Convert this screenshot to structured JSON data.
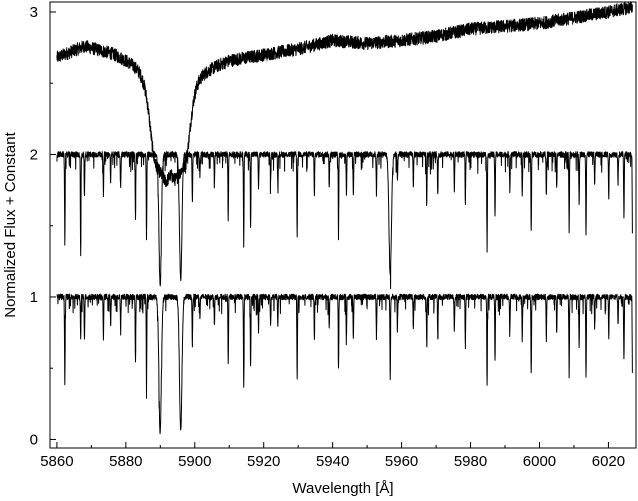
{
  "chart_data": {
    "type": "line",
    "title": "",
    "xlabel": "Wavelength [Å]",
    "ylabel": "Normalized Flux + Constant",
    "xlim": [
      5858,
      6028
    ],
    "ylim": [
      -0.06,
      3.07
    ],
    "xticks": [
      5860,
      5880,
      5900,
      5920,
      5940,
      5960,
      5980,
      6000,
      6020
    ],
    "yticks": [
      0,
      1,
      2,
      3
    ],
    "grid": false,
    "legend": "none",
    "series": [
      {
        "kind": "smooth",
        "baseline": 2.65,
        "trend": [
          [
            5860,
            2.68
          ],
          [
            5868,
            2.76
          ],
          [
            5876,
            2.71
          ],
          [
            5884,
            2.62
          ],
          [
            5892,
            2.5
          ],
          [
            5900,
            2.56
          ],
          [
            5910,
            2.66
          ],
          [
            5920,
            2.7
          ],
          [
            5930,
            2.74
          ],
          [
            5940,
            2.8
          ],
          [
            5950,
            2.78
          ],
          [
            5960,
            2.8
          ],
          [
            5970,
            2.83
          ],
          [
            5980,
            2.88
          ],
          [
            5990,
            2.9
          ],
          [
            6000,
            2.92
          ],
          [
            6010,
            2.96
          ],
          [
            6020,
            3.0
          ],
          [
            6026,
            3.03
          ]
        ],
        "noise": 0.045,
        "lines": [
          [
            5889.95,
            0.62,
            3.2
          ],
          [
            5895.92,
            0.6,
            3.0
          ]
        ]
      },
      {
        "kind": "telluric",
        "baseline": 2.0,
        "lines": [
          [
            5862.3,
            0.62
          ],
          [
            5866.9,
            0.72
          ],
          [
            5868.0,
            0.3
          ],
          [
            5873.5,
            0.3
          ],
          [
            5875.6,
            0.2
          ],
          [
            5878.5,
            0.25
          ],
          [
            5882.8,
            0.45
          ],
          [
            5886.0,
            0.58
          ],
          [
            5889.95,
            0.92
          ],
          [
            5895.92,
            0.88
          ],
          [
            5899.3,
            0.35
          ],
          [
            5901.5,
            0.15
          ],
          [
            5905.7,
            0.2
          ],
          [
            5909.7,
            0.45
          ],
          [
            5914.2,
            0.65
          ],
          [
            5916.2,
            0.5
          ],
          [
            5918.5,
            0.25
          ],
          [
            5922.0,
            0.2
          ],
          [
            5924.1,
            0.22
          ],
          [
            5929.7,
            0.58
          ],
          [
            5934.7,
            0.3
          ],
          [
            5939.0,
            0.22
          ],
          [
            5941.7,
            0.5
          ],
          [
            5944.0,
            0.28
          ],
          [
            5946.0,
            0.3
          ],
          [
            5952.7,
            0.28
          ],
          [
            5956.7,
            0.85
          ],
          [
            5958.8,
            0.2
          ],
          [
            5963.4,
            0.22
          ],
          [
            5967.3,
            0.35
          ],
          [
            5970.5,
            0.28
          ],
          [
            5975.3,
            0.25
          ],
          [
            5978.5,
            0.35
          ],
          [
            5984.8,
            0.62
          ],
          [
            5987.1,
            0.45
          ],
          [
            5991.4,
            0.25
          ],
          [
            5995.0,
            0.3
          ],
          [
            5997.6,
            0.55
          ],
          [
            6002.0,
            0.3
          ],
          [
            6005.0,
            0.25
          ],
          [
            6008.6,
            0.55
          ],
          [
            6011.5,
            0.35
          ],
          [
            6013.5,
            0.55
          ],
          [
            6016.0,
            0.22
          ],
          [
            6020.1,
            0.3
          ],
          [
            6022.8,
            0.2
          ],
          [
            6024.5,
            0.45
          ],
          [
            6027.0,
            0.65
          ]
        ]
      },
      {
        "kind": "telluric",
        "baseline": 1.0,
        "lines": [
          [
            5862.3,
            0.62
          ],
          [
            5866.9,
            0.3
          ],
          [
            5868.0,
            0.3
          ],
          [
            5873.5,
            0.3
          ],
          [
            5875.6,
            0.2
          ],
          [
            5878.5,
            0.25
          ],
          [
            5882.8,
            0.45
          ],
          [
            5886.0,
            0.58
          ],
          [
            5889.95,
            0.95
          ],
          [
            5895.92,
            0.94
          ],
          [
            5899.3,
            0.35
          ],
          [
            5901.5,
            0.15
          ],
          [
            5905.7,
            0.2
          ],
          [
            5909.7,
            0.45
          ],
          [
            5914.2,
            0.65
          ],
          [
            5916.2,
            0.5
          ],
          [
            5918.5,
            0.25
          ],
          [
            5922.0,
            0.2
          ],
          [
            5924.1,
            0.22
          ],
          [
            5929.7,
            0.58
          ],
          [
            5934.7,
            0.3
          ],
          [
            5939.0,
            0.22
          ],
          [
            5941.7,
            0.5
          ],
          [
            5944.0,
            0.28
          ],
          [
            5946.0,
            0.3
          ],
          [
            5952.7,
            0.28
          ],
          [
            5956.7,
            0.6
          ],
          [
            5958.8,
            0.2
          ],
          [
            5963.4,
            0.22
          ],
          [
            5967.3,
            0.35
          ],
          [
            5970.5,
            0.28
          ],
          [
            5975.3,
            0.25
          ],
          [
            5978.5,
            0.35
          ],
          [
            5984.8,
            0.62
          ],
          [
            5987.1,
            0.45
          ],
          [
            5991.4,
            0.25
          ],
          [
            5995.0,
            0.3
          ],
          [
            5997.6,
            0.55
          ],
          [
            6002.0,
            0.3
          ],
          [
            6005.0,
            0.25
          ],
          [
            6008.6,
            0.55
          ],
          [
            6011.5,
            0.35
          ],
          [
            6013.5,
            0.55
          ],
          [
            6016.0,
            0.22
          ],
          [
            6020.1,
            0.3
          ],
          [
            6022.8,
            0.2
          ],
          [
            6024.5,
            0.45
          ],
          [
            6027.0,
            0.65
          ]
        ]
      }
    ]
  }
}
